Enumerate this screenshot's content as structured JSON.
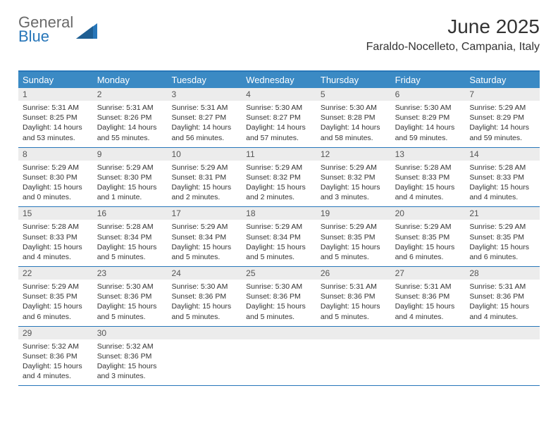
{
  "logo": {
    "word1": "General",
    "word2": "Blue"
  },
  "header": {
    "title": "June 2025",
    "subtitle": "Faraldo-Nocelleto, Campania, Italy"
  },
  "colors": {
    "brand": "#2776b9",
    "header_bg": "#3b8ac4",
    "daynum_bg": "#ececec",
    "text": "#333333",
    "logo_gray": "#6a6a6a"
  },
  "dayNames": [
    "Sunday",
    "Monday",
    "Tuesday",
    "Wednesday",
    "Thursday",
    "Friday",
    "Saturday"
  ],
  "weeks": [
    [
      {
        "n": "1",
        "sr": "Sunrise: 5:31 AM",
        "ss": "Sunset: 8:25 PM",
        "d1": "Daylight: 14 hours",
        "d2": "and 53 minutes."
      },
      {
        "n": "2",
        "sr": "Sunrise: 5:31 AM",
        "ss": "Sunset: 8:26 PM",
        "d1": "Daylight: 14 hours",
        "d2": "and 55 minutes."
      },
      {
        "n": "3",
        "sr": "Sunrise: 5:31 AM",
        "ss": "Sunset: 8:27 PM",
        "d1": "Daylight: 14 hours",
        "d2": "and 56 minutes."
      },
      {
        "n": "4",
        "sr": "Sunrise: 5:30 AM",
        "ss": "Sunset: 8:27 PM",
        "d1": "Daylight: 14 hours",
        "d2": "and 57 minutes."
      },
      {
        "n": "5",
        "sr": "Sunrise: 5:30 AM",
        "ss": "Sunset: 8:28 PM",
        "d1": "Daylight: 14 hours",
        "d2": "and 58 minutes."
      },
      {
        "n": "6",
        "sr": "Sunrise: 5:30 AM",
        "ss": "Sunset: 8:29 PM",
        "d1": "Daylight: 14 hours",
        "d2": "and 59 minutes."
      },
      {
        "n": "7",
        "sr": "Sunrise: 5:29 AM",
        "ss": "Sunset: 8:29 PM",
        "d1": "Daylight: 14 hours",
        "d2": "and 59 minutes."
      }
    ],
    [
      {
        "n": "8",
        "sr": "Sunrise: 5:29 AM",
        "ss": "Sunset: 8:30 PM",
        "d1": "Daylight: 15 hours",
        "d2": "and 0 minutes."
      },
      {
        "n": "9",
        "sr": "Sunrise: 5:29 AM",
        "ss": "Sunset: 8:30 PM",
        "d1": "Daylight: 15 hours",
        "d2": "and 1 minute."
      },
      {
        "n": "10",
        "sr": "Sunrise: 5:29 AM",
        "ss": "Sunset: 8:31 PM",
        "d1": "Daylight: 15 hours",
        "d2": "and 2 minutes."
      },
      {
        "n": "11",
        "sr": "Sunrise: 5:29 AM",
        "ss": "Sunset: 8:32 PM",
        "d1": "Daylight: 15 hours",
        "d2": "and 2 minutes."
      },
      {
        "n": "12",
        "sr": "Sunrise: 5:29 AM",
        "ss": "Sunset: 8:32 PM",
        "d1": "Daylight: 15 hours",
        "d2": "and 3 minutes."
      },
      {
        "n": "13",
        "sr": "Sunrise: 5:28 AM",
        "ss": "Sunset: 8:33 PM",
        "d1": "Daylight: 15 hours",
        "d2": "and 4 minutes."
      },
      {
        "n": "14",
        "sr": "Sunrise: 5:28 AM",
        "ss": "Sunset: 8:33 PM",
        "d1": "Daylight: 15 hours",
        "d2": "and 4 minutes."
      }
    ],
    [
      {
        "n": "15",
        "sr": "Sunrise: 5:28 AM",
        "ss": "Sunset: 8:33 PM",
        "d1": "Daylight: 15 hours",
        "d2": "and 4 minutes."
      },
      {
        "n": "16",
        "sr": "Sunrise: 5:28 AM",
        "ss": "Sunset: 8:34 PM",
        "d1": "Daylight: 15 hours",
        "d2": "and 5 minutes."
      },
      {
        "n": "17",
        "sr": "Sunrise: 5:29 AM",
        "ss": "Sunset: 8:34 PM",
        "d1": "Daylight: 15 hours",
        "d2": "and 5 minutes."
      },
      {
        "n": "18",
        "sr": "Sunrise: 5:29 AM",
        "ss": "Sunset: 8:34 PM",
        "d1": "Daylight: 15 hours",
        "d2": "and 5 minutes."
      },
      {
        "n": "19",
        "sr": "Sunrise: 5:29 AM",
        "ss": "Sunset: 8:35 PM",
        "d1": "Daylight: 15 hours",
        "d2": "and 5 minutes."
      },
      {
        "n": "20",
        "sr": "Sunrise: 5:29 AM",
        "ss": "Sunset: 8:35 PM",
        "d1": "Daylight: 15 hours",
        "d2": "and 6 minutes."
      },
      {
        "n": "21",
        "sr": "Sunrise: 5:29 AM",
        "ss": "Sunset: 8:35 PM",
        "d1": "Daylight: 15 hours",
        "d2": "and 6 minutes."
      }
    ],
    [
      {
        "n": "22",
        "sr": "Sunrise: 5:29 AM",
        "ss": "Sunset: 8:35 PM",
        "d1": "Daylight: 15 hours",
        "d2": "and 6 minutes."
      },
      {
        "n": "23",
        "sr": "Sunrise: 5:30 AM",
        "ss": "Sunset: 8:36 PM",
        "d1": "Daylight: 15 hours",
        "d2": "and 5 minutes."
      },
      {
        "n": "24",
        "sr": "Sunrise: 5:30 AM",
        "ss": "Sunset: 8:36 PM",
        "d1": "Daylight: 15 hours",
        "d2": "and 5 minutes."
      },
      {
        "n": "25",
        "sr": "Sunrise: 5:30 AM",
        "ss": "Sunset: 8:36 PM",
        "d1": "Daylight: 15 hours",
        "d2": "and 5 minutes."
      },
      {
        "n": "26",
        "sr": "Sunrise: 5:31 AM",
        "ss": "Sunset: 8:36 PM",
        "d1": "Daylight: 15 hours",
        "d2": "and 5 minutes."
      },
      {
        "n": "27",
        "sr": "Sunrise: 5:31 AM",
        "ss": "Sunset: 8:36 PM",
        "d1": "Daylight: 15 hours",
        "d2": "and 4 minutes."
      },
      {
        "n": "28",
        "sr": "Sunrise: 5:31 AM",
        "ss": "Sunset: 8:36 PM",
        "d1": "Daylight: 15 hours",
        "d2": "and 4 minutes."
      }
    ],
    [
      {
        "n": "29",
        "sr": "Sunrise: 5:32 AM",
        "ss": "Sunset: 8:36 PM",
        "d1": "Daylight: 15 hours",
        "d2": "and 4 minutes."
      },
      {
        "n": "30",
        "sr": "Sunrise: 5:32 AM",
        "ss": "Sunset: 8:36 PM",
        "d1": "Daylight: 15 hours",
        "d2": "and 3 minutes."
      },
      {
        "empty": true
      },
      {
        "empty": true
      },
      {
        "empty": true
      },
      {
        "empty": true
      },
      {
        "empty": true
      }
    ]
  ]
}
